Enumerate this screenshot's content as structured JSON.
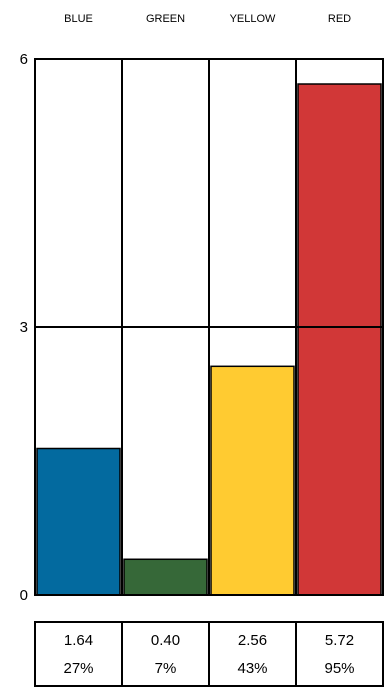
{
  "chart_data": {
    "type": "bar",
    "categories": [
      "BLUE",
      "GREEN",
      "YELLOW",
      "RED"
    ],
    "values": [
      1.64,
      0.4,
      2.56,
      5.72
    ],
    "percentages": [
      "27%",
      "7%",
      "43%",
      "95%"
    ],
    "value_labels": [
      "1.64",
      "0.40",
      "2.56",
      "5.72"
    ],
    "colors": [
      "#036a9f",
      "#366838",
      "#ffcb31",
      "#d13737"
    ],
    "yticks": [
      0,
      3,
      6
    ],
    "ytick_labels": [
      "0",
      "3",
      "6"
    ],
    "ylim": [
      0,
      6
    ],
    "grid": true,
    "title": "",
    "xlabel": "",
    "ylabel": ""
  }
}
